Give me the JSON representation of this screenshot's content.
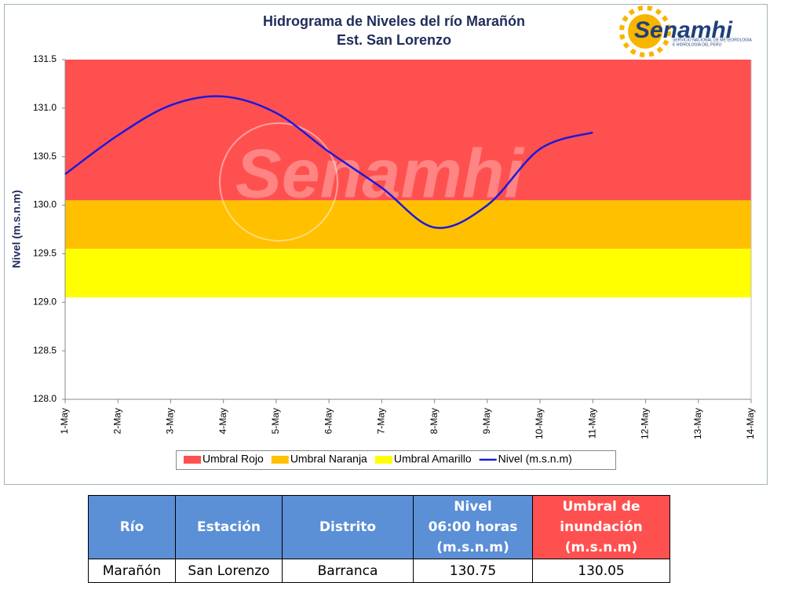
{
  "chart_data": {
    "type": "line",
    "title": "Hidrograma de Niveles del río Marañón",
    "subtitle": "Est. San Lorenzo",
    "ylabel": "Nivel (m.s.n.m)",
    "categories": [
      "1-May",
      "2-May",
      "3-May",
      "4-May",
      "5-May",
      "6-May",
      "7-May",
      "8-May",
      "9-May",
      "10-May",
      "11-May",
      "12-May",
      "13-May",
      "14-May"
    ],
    "thresholds": [
      {
        "name": "Umbral Rojo",
        "color": "#ff5050",
        "lower": 130.05,
        "upper": 131.5
      },
      {
        "name": "Umbral Naranja",
        "color": "#ffc000",
        "lower": 129.55,
        "upper": 130.05
      },
      {
        "name": "Umbral Amarillo",
        "color": "#ffff00",
        "lower": 129.05,
        "upper": 129.55
      }
    ],
    "series": [
      {
        "name": "Nivel (m.s.n.m)",
        "color": "#1a1adb",
        "values": [
          130.32,
          130.72,
          131.03,
          131.12,
          130.95,
          130.55,
          130.18,
          129.77,
          130.0,
          130.58,
          130.75,
          null,
          null,
          null
        ]
      }
    ],
    "ylim": [
      128,
      131.5
    ],
    "yticks": [
      {
        "value": 128,
        "label": "128.0"
      },
      128.5,
      {
        "value": 129,
        "label": "129.0"
      },
      129.5,
      {
        "value": 130,
        "label": "130.0"
      },
      130.5,
      {
        "value": 131,
        "label": "131.0"
      },
      131.5
    ],
    "legend": "bottom"
  },
  "logo": {
    "name": "Senamhi",
    "caption": [
      "SERVICIO NACIONAL DE METEOROLOGÍA",
      "E HIDROLOGÍA DEL PERÚ"
    ]
  },
  "table": {
    "header": [
      "Río",
      "Estación",
      "Distrito",
      [
        "Nivel",
        "06:00 horas",
        "(m.s.n.m)"
      ],
      [
        "Umbral de",
        "inundación",
        "(m.s.n.m)"
      ]
    ],
    "rows": [
      [
        "Marañón",
        "San Lorenzo",
        "Barranca",
        "130.75",
        "130.05"
      ]
    ]
  }
}
